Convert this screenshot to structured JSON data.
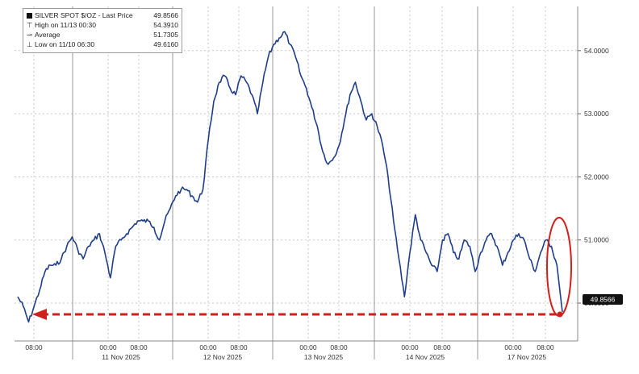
{
  "legend": {
    "title": "SILVER SPOT $/OZ - Last Price",
    "last_price": "49.8566",
    "rows": [
      {
        "label": "High on 11/13 00:30",
        "value": "54.3910",
        "icon": "high-marker-icon"
      },
      {
        "label": "Average",
        "value": "51.7305",
        "icon": "average-marker-icon"
      },
      {
        "label": "Low on 11/10 06:30",
        "value": "49.6160",
        "icon": "low-marker-icon"
      }
    ]
  },
  "colors": {
    "line": "#1f3e8a",
    "line_highlight": "#2d8fd6",
    "arrow": "#d0201b",
    "circle": "#d0201b",
    "grid": "#c8c8c8",
    "badge": "#111111"
  },
  "chart_data": {
    "type": "line",
    "y_ticks": [
      "50.0000",
      "51.0000",
      "52.0000",
      "53.0000",
      "54.0000"
    ],
    "y_tick_values": [
      50,
      51,
      52,
      53,
      54
    ],
    "ylim": [
      49.4,
      54.7
    ],
    "x_time_labels": [
      "08:00",
      "00:00",
      "08:00",
      "00:00",
      "08:00",
      "00:00",
      "08:00",
      "00:00",
      "08:00",
      "00:00",
      "08:00"
    ],
    "x_day_labels": [
      "11 Nov 2025",
      "12 Nov 2025",
      "13 Nov 2025",
      "14 Nov 2025",
      "17 Nov 2025"
    ],
    "last_price_label": "49.8566",
    "series": [
      {
        "values": [
          50.1,
          49.95,
          49.7,
          49.95,
          50.2,
          50.5,
          50.6,
          50.6,
          50.7,
          50.9,
          51.05,
          50.85,
          50.7,
          50.9,
          51.0,
          51.1,
          50.8,
          50.4,
          50.9,
          51.0,
          51.1,
          51.2,
          51.3,
          51.3,
          51.3,
          51.2,
          51.0,
          51.3,
          51.5,
          51.7,
          51.8,
          51.8,
          51.7,
          51.6,
          51.8,
          52.6,
          53.2,
          53.5,
          53.6,
          53.4,
          53.3,
          53.6,
          53.5,
          53.3,
          53.0,
          53.5,
          53.9,
          54.1,
          54.2,
          54.3,
          54.1,
          53.9,
          53.6,
          53.4,
          53.1,
          52.8,
          52.4,
          52.2,
          52.3,
          52.5,
          52.9,
          53.3,
          53.5,
          53.2,
          52.9,
          53.0,
          52.8,
          52.5,
          52.0,
          51.3,
          50.7,
          50.1,
          50.8,
          51.4,
          51.0,
          50.8,
          50.6,
          50.5,
          51.0,
          51.1,
          50.8,
          50.7,
          51.0,
          50.9,
          50.5,
          50.8,
          51.0,
          51.1,
          50.9,
          50.6,
          50.8,
          51.0,
          51.1,
          51.0,
          50.7,
          50.5,
          50.8,
          51.0,
          50.9,
          50.6,
          49.86
        ]
      }
    ]
  }
}
